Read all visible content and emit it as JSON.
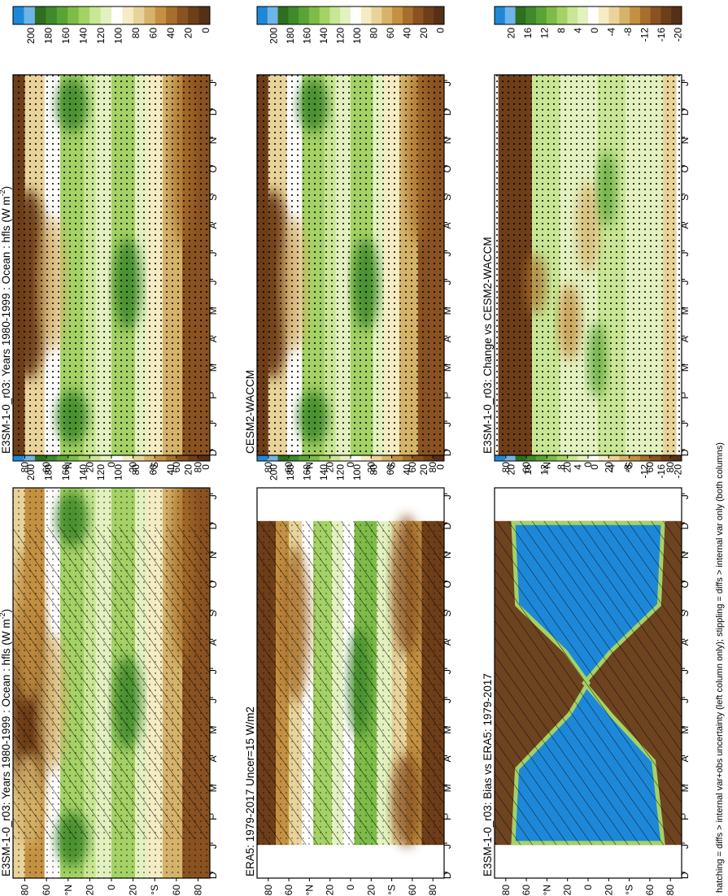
{
  "footnote": "hatching = diffs > internal var+obs uncertainty (left column only); stippling = diffs > internal var only (both columns)",
  "month_ticks": [
    "D",
    "J",
    "F",
    "M",
    "A",
    "M",
    "J",
    "J",
    "A",
    "S",
    "O",
    "N",
    "D",
    "J"
  ],
  "lat_ticks": [
    "80",
    "60",
    "°N",
    "20",
    "0",
    "20",
    "°S",
    "60",
    "80"
  ],
  "abs_levels": [
    "200",
    "180",
    "160",
    "140",
    "120",
    "100",
    "80",
    "60",
    "40",
    "20",
    "0"
  ],
  "diff_levels": [
    "20",
    "16",
    "12",
    "8",
    "4",
    "0",
    "-4",
    "-8",
    "-12",
    "-16",
    "-20"
  ],
  "chart_data": [
    {
      "type": "heatmap",
      "title": "E3SM-1-0_r03: Years 1980-1999 : Ocean : hfls (W m",
      "title_unit_sup": "-2",
      "xlabel": "",
      "ylabel": "",
      "x": [
        "D",
        "J",
        "F",
        "M",
        "A",
        "M",
        "J",
        "J",
        "A",
        "S",
        "O",
        "N",
        "D",
        "J"
      ],
      "y": [
        "80",
        "60",
        "°N",
        "20",
        "0",
        "20",
        "°S",
        "60",
        "80"
      ],
      "colorbar": [
        "200",
        "180",
        "160",
        "140",
        "120",
        "100",
        "80",
        "60",
        "40",
        "20",
        "0"
      ]
    },
    {
      "type": "heatmap",
      "title": "E3SM-1-0_r03: Years 1980-1999 : Ocean : hfls (W m",
      "title_unit_sup": "-2",
      "xlabel": "",
      "ylabel": "",
      "x": [
        "D",
        "J",
        "F",
        "M",
        "A",
        "M",
        "J",
        "J",
        "A",
        "S",
        "O",
        "N",
        "D",
        "J"
      ],
      "y": [
        "80",
        "60",
        "°N",
        "20",
        "0",
        "20",
        "°S",
        "60",
        "80"
      ],
      "colorbar": [
        "200",
        "180",
        "160",
        "140",
        "120",
        "100",
        "80",
        "60",
        "40",
        "20",
        "0"
      ]
    },
    {
      "type": "heatmap",
      "title": "ERA5: 1979-2017 Uncer=15 W/m2",
      "title_unit_sup": "",
      "xlabel": "",
      "ylabel": "",
      "x": [
        "D",
        "J",
        "F",
        "M",
        "A",
        "M",
        "J",
        "J",
        "A",
        "S",
        "O",
        "N",
        "D",
        "J"
      ],
      "y": [
        "80",
        "60",
        "°N",
        "20",
        "0",
        "20",
        "°S",
        "60",
        "80"
      ],
      "colorbar": [
        "200",
        "180",
        "160",
        "140",
        "120",
        "100",
        "80",
        "60",
        "40",
        "20",
        "0"
      ]
    },
    {
      "type": "heatmap",
      "title": "CESM2-WACCM",
      "title_unit_sup": "",
      "xlabel": "",
      "ylabel": "",
      "x": [
        "D",
        "J",
        "F",
        "M",
        "A",
        "M",
        "J",
        "J",
        "A",
        "S",
        "O",
        "N",
        "D",
        "J"
      ],
      "y": [
        "80",
        "60",
        "°N",
        "20",
        "0",
        "20",
        "°S",
        "60",
        "80"
      ],
      "colorbar": [
        "200",
        "180",
        "160",
        "140",
        "120",
        "100",
        "80",
        "60",
        "40",
        "20",
        "0"
      ]
    },
    {
      "type": "heatmap",
      "title": "E3SM-1-0_r03: Bias vs ERA5: 1979-2017",
      "title_unit_sup": "",
      "xlabel": "",
      "ylabel": "",
      "x": [
        "D",
        "J",
        "F",
        "M",
        "A",
        "M",
        "J",
        "J",
        "A",
        "S",
        "O",
        "N",
        "D",
        "J"
      ],
      "y": [
        "80",
        "60",
        "°N",
        "20",
        "0",
        "20",
        "°S",
        "60",
        "80"
      ],
      "colorbar": [
        "20",
        "16",
        "12",
        "8",
        "4",
        "0",
        "-4",
        "-8",
        "-12",
        "-16",
        "-20"
      ]
    },
    {
      "type": "heatmap",
      "title": "E3SM-1-0_r03: Change vs CESM2-WACCM",
      "title_unit_sup": "",
      "xlabel": "",
      "ylabel": "",
      "x": [
        "D",
        "J",
        "F",
        "M",
        "A",
        "M",
        "J",
        "J",
        "A",
        "S",
        "O",
        "N",
        "D",
        "J"
      ],
      "y": [
        "80",
        "60",
        "°N",
        "20",
        "0",
        "20",
        "°S",
        "60",
        "80"
      ],
      "colorbar": [
        "20",
        "16",
        "12",
        "8",
        "4",
        "0",
        "-4",
        "-8",
        "-12",
        "-16",
        "-20"
      ]
    }
  ],
  "colors": {
    "scale": [
      "#1e88d8",
      "#6fb4e8",
      "#2e6e20",
      "#3f8a2a",
      "#5aa435",
      "#7ebc48",
      "#a4d265",
      "#c8e693",
      "#e3f1bf",
      "#ffffff",
      "#f5ecc3",
      "#e8d39a",
      "#d6b36a",
      "#c49142",
      "#a86f2c",
      "#8a5221",
      "#6e3e19",
      "#553017"
    ],
    "ocean_bias": "#1e88d8",
    "land_bias": "#6e4320"
  }
}
